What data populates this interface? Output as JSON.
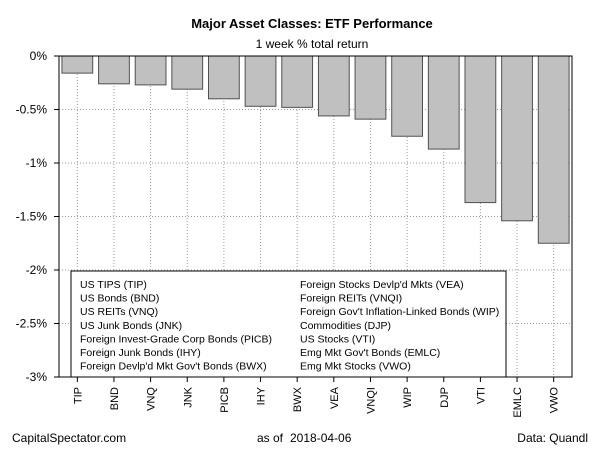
{
  "chart_data": {
    "type": "bar",
    "title": "Major Asset Classes: ETF Performance",
    "subtitle": "1 week % total return",
    "categories": [
      "TIP",
      "BND",
      "VNQ",
      "JNK",
      "PICB",
      "IHY",
      "BWX",
      "VEA",
      "VNQI",
      "WIP",
      "DJP",
      "VTI",
      "EMLC",
      "VWO"
    ],
    "values": [
      -0.16,
      -0.26,
      -0.27,
      -0.31,
      -0.4,
      -0.47,
      -0.48,
      -0.56,
      -0.59,
      -0.75,
      -0.87,
      -1.37,
      -1.54,
      -1.75
    ],
    "ylim": [
      -3,
      0
    ],
    "yticks": [
      0,
      -0.5,
      -1,
      -1.5,
      -2,
      -2.5,
      -3
    ],
    "ytick_labels": [
      "0%",
      "-0.5%",
      "-1%",
      "-1.5%",
      "-2%",
      "-2.5%",
      "-3%"
    ],
    "grid": true,
    "bar_color": "#c0c0c0",
    "legend_placement": "bottom-left",
    "legend": [
      "US TIPS (TIP)",
      "US Bonds (BND)",
      "US REITs (VNQ)",
      "US Junk Bonds (JNK)",
      "Foreign Invest-Grade Corp Bonds (PICB)",
      "Foreign Junk Bonds (IHY)",
      "Foreign Devlp'd Mkt Gov't Bonds (BWX)",
      "Foreign Stocks Devlp'd Mkts (VEA)",
      "Foreign REITs (VNQI)",
      "Foreign Gov't Inflation-Linked Bonds (WIP)",
      "Commodities (DJP)",
      "US Stocks (VTI)",
      "Emg Mkt Gov't Bonds (EMLC)",
      "Emg Mkt Stocks (VWO)"
    ]
  },
  "footer": {
    "source_site": "CapitalSpectator.com",
    "as_of_label": "as of",
    "as_of_date": "2018-04-06",
    "data_source": "Data: Quandl"
  }
}
